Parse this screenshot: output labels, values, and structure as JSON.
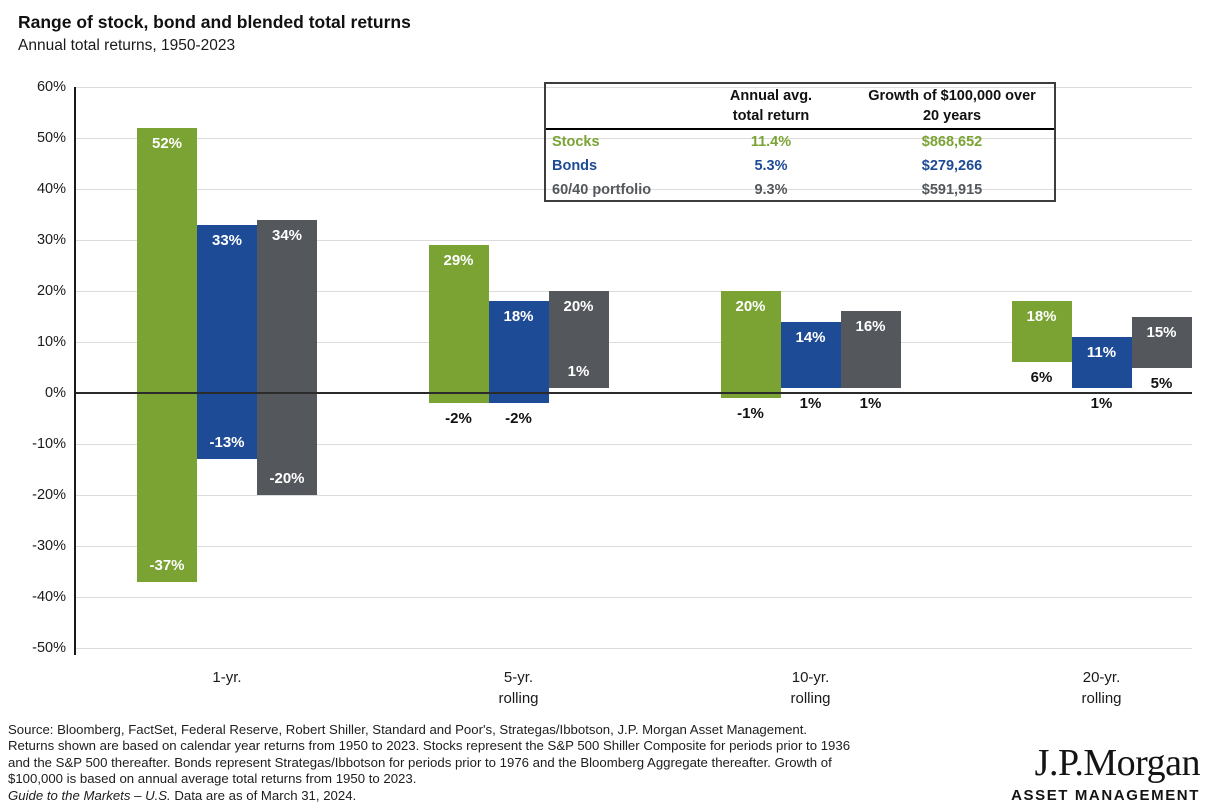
{
  "title": "Range of stock, bond and blended total returns",
  "subtitle": "Annual total returns, 1950-2023",
  "colors": {
    "stocks": "#7aa334",
    "bonds": "#1e4b95",
    "blend": "#54585c",
    "gridline": "#dcdcdc",
    "zero_line": "#2b2b2b"
  },
  "chart_data": {
    "type": "bar",
    "subtype": "floating-range-columns",
    "title": "Range of stock, bond and blended total returns",
    "subtitle": "Annual total returns, 1950-2023",
    "ylim": [
      -50,
      60
    ],
    "grid": true,
    "y_ticks": [
      60,
      50,
      40,
      30,
      20,
      10,
      0,
      -10,
      -20,
      -30,
      -40,
      -50
    ],
    "y_tick_labels": [
      "60%",
      "50%",
      "40%",
      "30%",
      "20%",
      "10%",
      "0%",
      "-10%",
      "-20%",
      "-30%",
      "-40%",
      "-50%"
    ],
    "categories": [
      "1-yr.",
      "5-yr.\nrolling",
      "10-yr.\nrolling",
      "20-yr.\nrolling"
    ],
    "series": [
      {
        "name": "Stocks",
        "color_key": "stocks",
        "ranges": [
          [
            -37,
            52
          ],
          [
            -2,
            29
          ],
          [
            -1,
            20
          ],
          [
            6,
            18
          ]
        ],
        "max_labels": [
          "52%",
          "29%",
          "20%",
          "18%"
        ],
        "min_labels": [
          "-37%",
          "-2%",
          "-1%",
          "6%"
        ],
        "min_label_pos": [
          "inside",
          "below",
          "below",
          "below"
        ]
      },
      {
        "name": "Bonds",
        "color_key": "bonds",
        "ranges": [
          [
            -13,
            33
          ],
          [
            -2,
            18
          ],
          [
            1,
            14
          ],
          [
            1,
            11
          ]
        ],
        "max_labels": [
          "33%",
          "18%",
          "14%",
          "11%"
        ],
        "min_labels": [
          "-13%",
          "-2%",
          "1%",
          "1%"
        ],
        "min_label_pos": [
          "inside",
          "below",
          "below",
          "below"
        ]
      },
      {
        "name": "60/40 portfolio",
        "color_key": "blend",
        "ranges": [
          [
            -20,
            34
          ],
          [
            1,
            20
          ],
          [
            1,
            16
          ],
          [
            5,
            15
          ]
        ],
        "max_labels": [
          "34%",
          "20%",
          "16%",
          "15%"
        ],
        "min_labels": [
          "-20%",
          "1%",
          "1%",
          "5%"
        ],
        "min_label_pos": [
          "inside",
          "inside",
          "below",
          "below"
        ]
      }
    ]
  },
  "table": {
    "headers": [
      "Annual avg.\ntotal return",
      "Growth of $100,000 over\n20 years"
    ],
    "rows": [
      {
        "label": "Stocks",
        "avg": "11.4%",
        "growth": "$868,652"
      },
      {
        "label": "Bonds",
        "avg": "5.3%",
        "growth": "$279,266"
      },
      {
        "label": "60/40 portfolio",
        "avg": "9.3%",
        "growth": "$591,915"
      }
    ]
  },
  "footnote": {
    "lines": [
      "Source: Bloomberg, FactSet, Federal Reserve, Robert Shiller, Standard and Poor's, Strategas/Ibbotson, J.P. Morgan Asset Management.",
      "Returns shown are based on calendar year returns from 1950 to 2023. Stocks represent the S&P 500 Shiller Composite for periods prior to 1936",
      "and the S&P 500 thereafter. Bonds represent Strategas/Ibbotson for periods prior to 1976 and the Bloomberg Aggregate thereafter. Growth of",
      "$100,000 is based on annual average total returns from 1950 to 2023."
    ],
    "guide_italic": "Guide to the Markets – U.S.",
    "guide_rest": " Data are as of March 31, 2024."
  },
  "logo": {
    "brand": "J.P.Morgan",
    "division": "ASSET MANAGEMENT"
  }
}
